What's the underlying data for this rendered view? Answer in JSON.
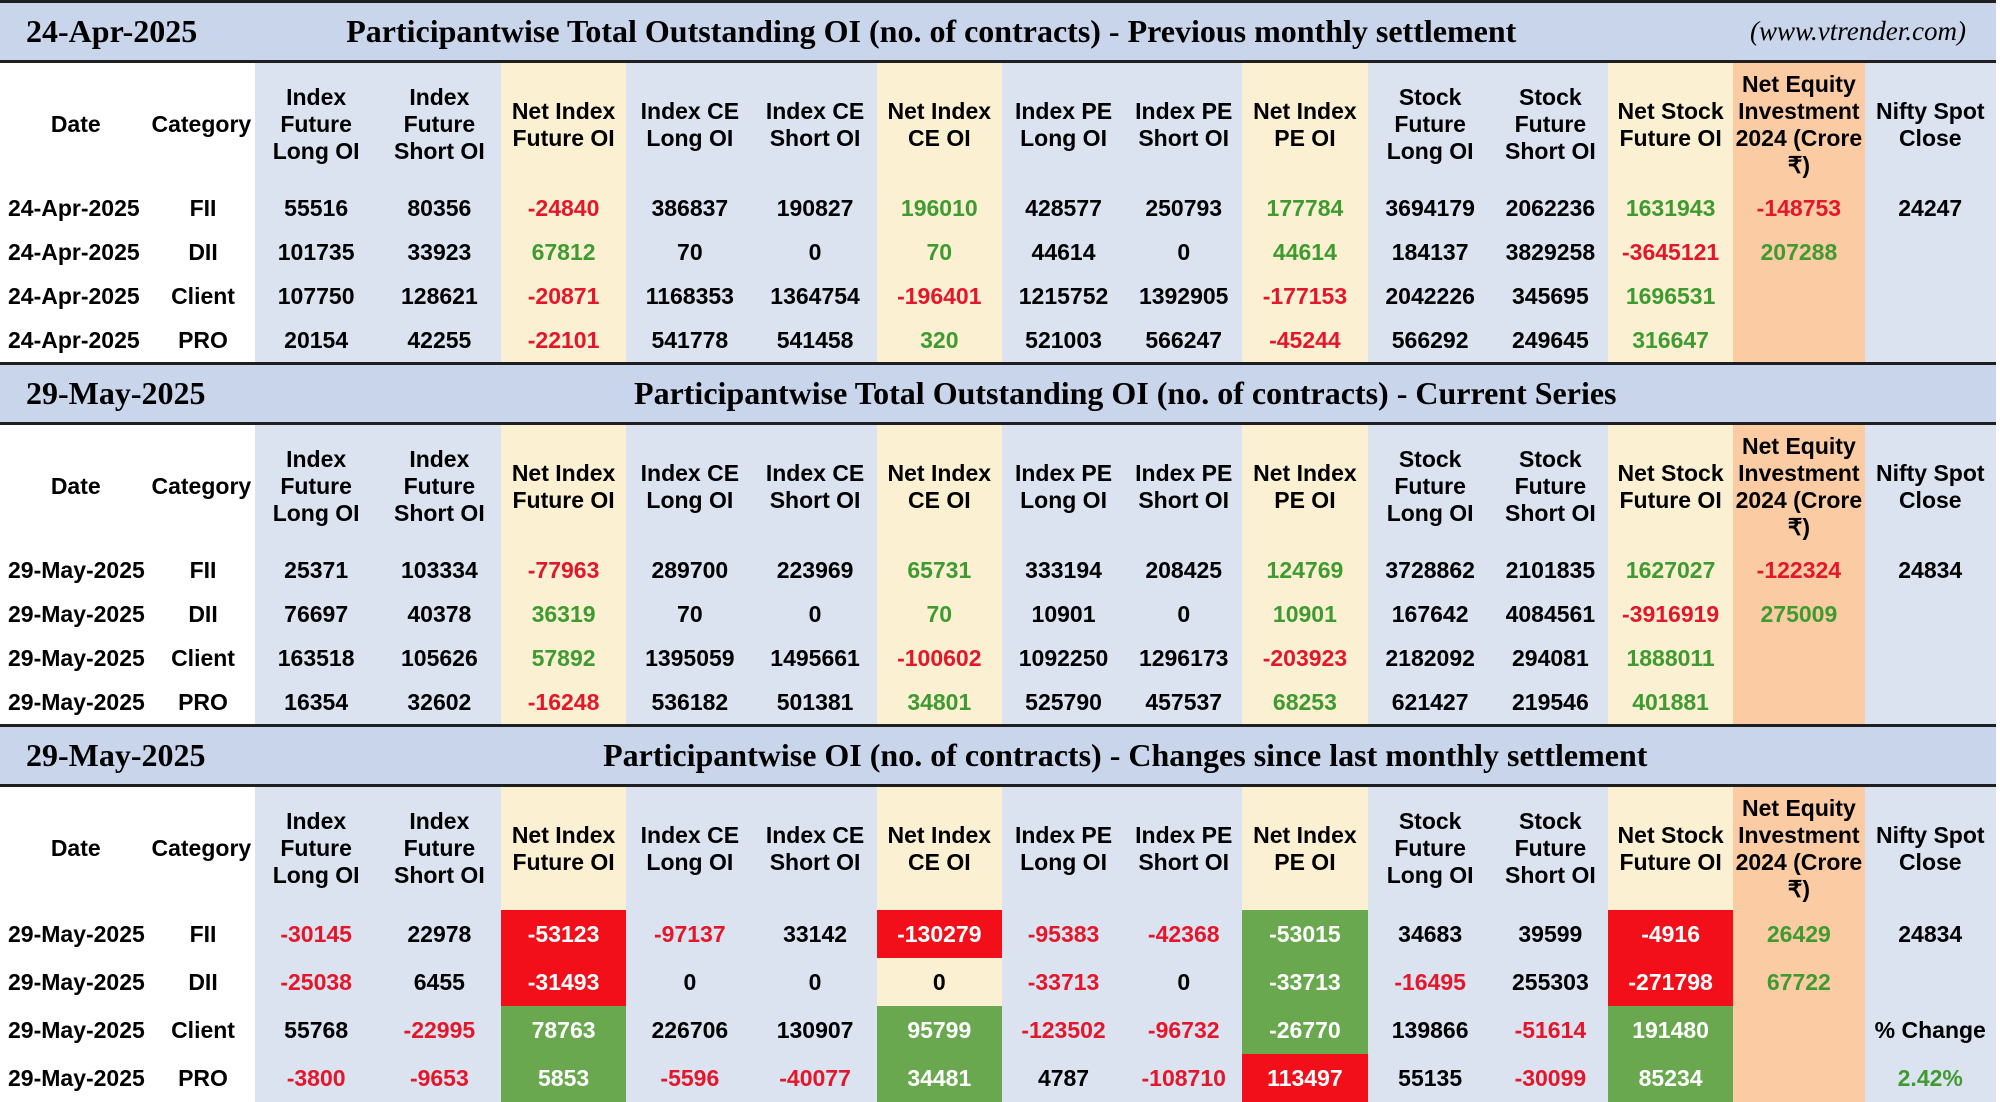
{
  "site": "(www.vtrender.com)",
  "headers": [
    "Date",
    "Category",
    "Index Future Long OI",
    "Index Future Short OI",
    "Net Index Future OI",
    "Index CE Long OI",
    "Index CE Short OI",
    "Net Index CE OI",
    "Index PE Long OI",
    "Index PE Short OI",
    "Net Index PE OI",
    "Stock Future Long OI",
    "Stock Future Short OI",
    "Net Stock Future OI",
    "Net Equity Investment 2024 (Crore ₹)",
    "Nifty Spot Close"
  ],
  "sections": [
    {
      "date": "24-Apr-2025",
      "title": "Participantwise Total Outstanding OI (no. of contracts) - Previous monthly settlement",
      "rows": [
        {
          "date": "24-Apr-2025",
          "category": "FII",
          "values": [
            "55516",
            "80356",
            "-24840",
            "386837",
            "190827",
            "196010",
            "428577",
            "250793",
            "177784",
            "3694179",
            "2062236",
            "1631943",
            "-148753"
          ],
          "nifty": "24247"
        },
        {
          "date": "24-Apr-2025",
          "category": "DII",
          "values": [
            "101735",
            "33923",
            "67812",
            "70",
            "0",
            "70",
            "44614",
            "0",
            "44614",
            "184137",
            "3829258",
            "-3645121",
            "207288"
          ],
          "nifty": ""
        },
        {
          "date": "24-Apr-2025",
          "category": "Client",
          "values": [
            "107750",
            "128621",
            "-20871",
            "1168353",
            "1364754",
            "-196401",
            "1215752",
            "1392905",
            "-177153",
            "2042226",
            "345695",
            "1696531",
            ""
          ],
          "nifty": ""
        },
        {
          "date": "24-Apr-2025",
          "category": "PRO",
          "values": [
            "20154",
            "42255",
            "-22101",
            "541778",
            "541458",
            "320",
            "521003",
            "566247",
            "-45244",
            "566292",
            "249645",
            "316647",
            ""
          ],
          "nifty": ""
        }
      ]
    },
    {
      "date": "29-May-2025",
      "title": "Participantwise Total Outstanding OI (no. of contracts) - Current Series",
      "rows": [
        {
          "date": "29-May-2025",
          "category": "FII",
          "values": [
            "25371",
            "103334",
            "-77963",
            "289700",
            "223969",
            "65731",
            "333194",
            "208425",
            "124769",
            "3728862",
            "2101835",
            "1627027",
            "-122324"
          ],
          "nifty": "24834"
        },
        {
          "date": "29-May-2025",
          "category": "DII",
          "values": [
            "76697",
            "40378",
            "36319",
            "70",
            "0",
            "70",
            "10901",
            "0",
            "10901",
            "167642",
            "4084561",
            "-3916919",
            "275009"
          ],
          "nifty": ""
        },
        {
          "date": "29-May-2025",
          "category": "Client",
          "values": [
            "163518",
            "105626",
            "57892",
            "1395059",
            "1495661",
            "-100602",
            "1092250",
            "1296173",
            "-203923",
            "2182092",
            "294081",
            "1888011",
            ""
          ],
          "nifty": ""
        },
        {
          "date": "29-May-2025",
          "category": "PRO",
          "values": [
            "16354",
            "32602",
            "-16248",
            "536182",
            "501381",
            "34801",
            "525790",
            "457537",
            "68253",
            "621427",
            "219546",
            "401881",
            ""
          ],
          "nifty": ""
        }
      ]
    },
    {
      "date": "29-May-2025",
      "title": "Participantwise OI (no. of contracts) - Changes since last monthly settlement",
      "rows": [
        {
          "date": "29-May-2025",
          "category": "FII",
          "values": [
            "-30145",
            "22978",
            "-53123",
            "-97137",
            "33142",
            "-130279",
            "-95383",
            "-42368",
            "-53015",
            "34683",
            "39599",
            "-4916",
            "26429"
          ],
          "nifty": "24834"
        },
        {
          "date": "29-May-2025",
          "category": "DII",
          "values": [
            "-25038",
            "6455",
            "-31493",
            "0",
            "0",
            "0",
            "-33713",
            "0",
            "-33713",
            "-16495",
            "255303",
            "-271798",
            "67722"
          ],
          "nifty": ""
        },
        {
          "date": "29-May-2025",
          "category": "Client",
          "values": [
            "55768",
            "-22995",
            "78763",
            "226706",
            "130907",
            "95799",
            "-123502",
            "-96732",
            "-26770",
            "139866",
            "-51614",
            "191480",
            ""
          ],
          "nifty": "% Change"
        },
        {
          "date": "29-May-2025",
          "category": "PRO",
          "values": [
            "-3800",
            "-9653",
            "5853",
            "-5596",
            "-40077",
            "34481",
            "4787",
            "-108710",
            "113497",
            "55135",
            "-30099",
            "85234",
            ""
          ],
          "nifty": "2.42%"
        }
      ]
    }
  ],
  "colors": {
    "title_bg": "#c9d5ea",
    "tan": "#fbf0d2",
    "blue": "#dbe3f1",
    "peach": "#fbcba4",
    "red_text": "#e3162a",
    "green_text": "#3f9b30",
    "red_fill": "#f30f1a",
    "green_fill": "#6aa84f"
  }
}
